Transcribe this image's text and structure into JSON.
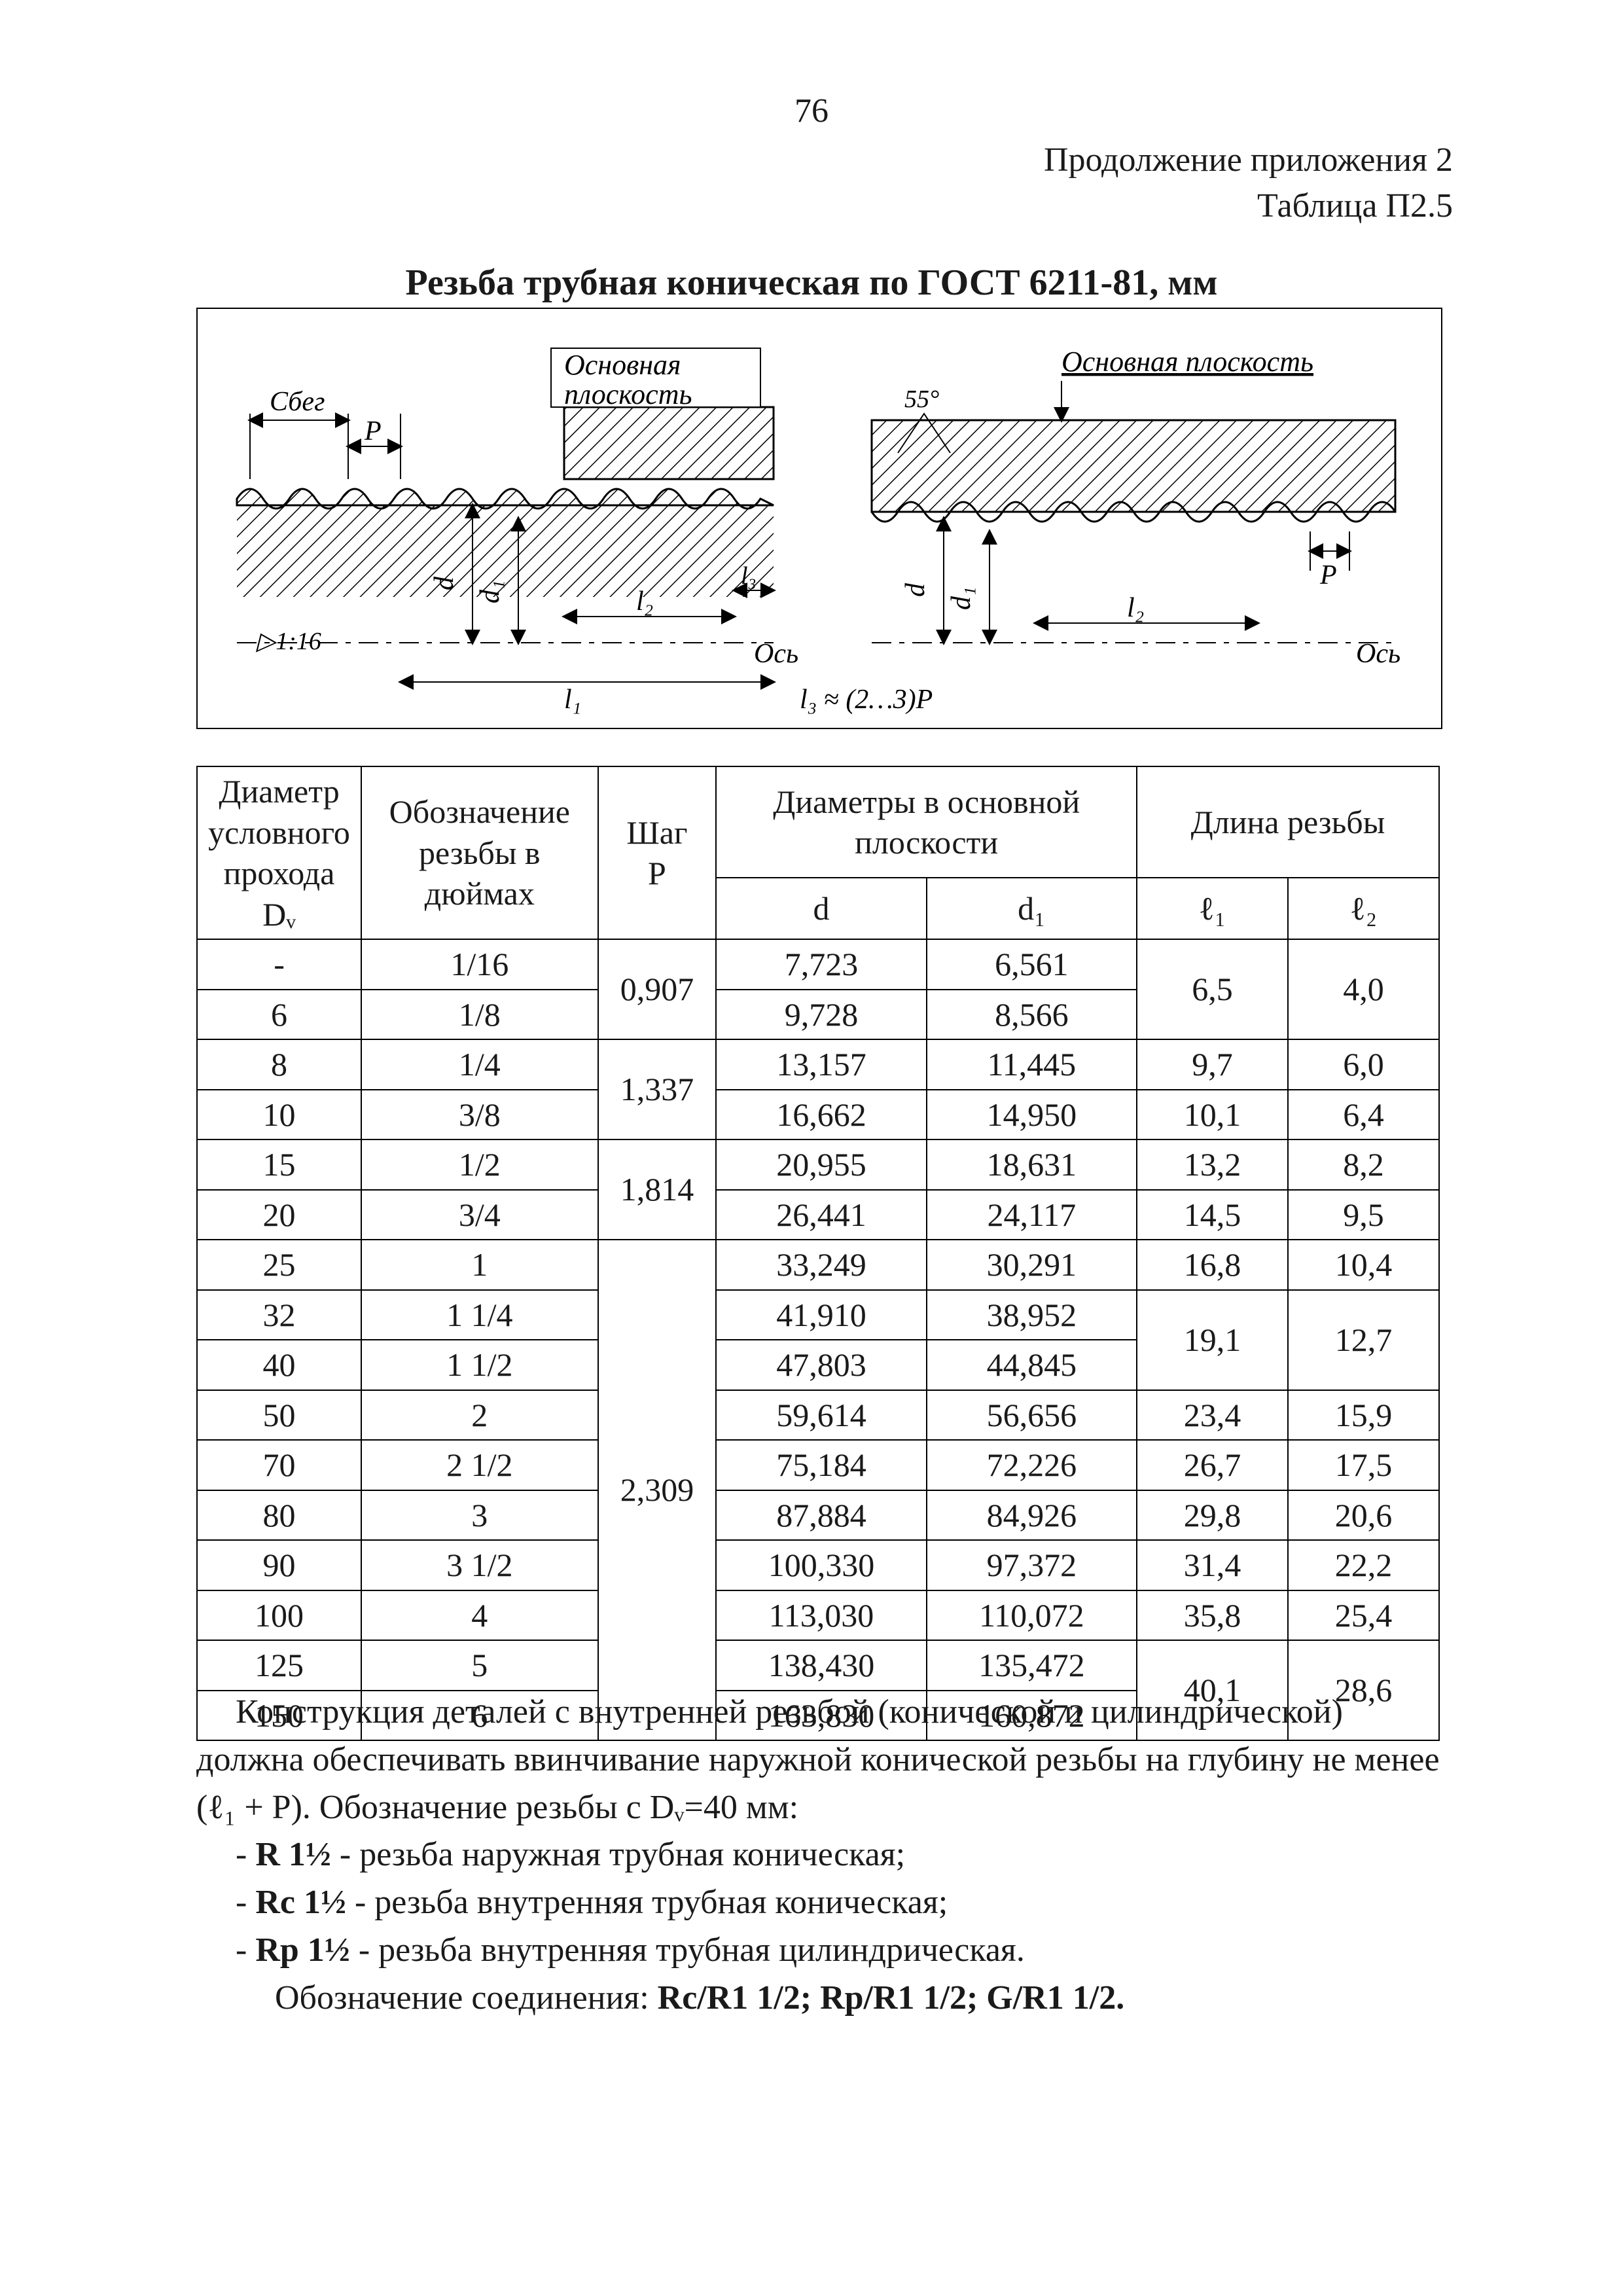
{
  "page_number": "76",
  "header": {
    "line1": "Продолжение приложения 2",
    "line2": "Таблица П2.5"
  },
  "title": "Резьба трубная коническая по ГОСТ 6211-81, мм",
  "figure": {
    "label_sbeg": "Сбег",
    "label_p_left": "P",
    "label_main_plane_left_1": "Основная",
    "label_main_plane_left_2": "плоскость",
    "label_main_plane_right": "Основная плоскость",
    "label_angle": "55°",
    "label_taper": "▷1:16",
    "label_d": "d",
    "label_d1": "d₁",
    "label_l1": "l₁",
    "label_l2": "l₂",
    "label_l3": "l₃",
    "label_p_right": "P",
    "label_axis": "Ось",
    "label_formula": "l₃ ≈ (2…3)P"
  },
  "table": {
    "headers": {
      "dy_top": "Диаметр условного прохода",
      "dy_bot": "Dᵥ",
      "name_top": "Обозначение резьбы в дюймах",
      "p_top": "Шаг",
      "p_bot": "P",
      "diam_group": "Диаметры в основной плоскости",
      "d": "d",
      "d1": "d₁",
      "len_group": "Длина резьбы",
      "l1": "ℓ₁",
      "l2": "ℓ₂"
    },
    "p_groups": [
      {
        "p": "0,907",
        "span": 2
      },
      {
        "p": "1,337",
        "span": 2
      },
      {
        "p": "1,814",
        "span": 2
      },
      {
        "p": "2,309",
        "span": 10
      }
    ],
    "rows": [
      {
        "dy": "-",
        "name": "1/16",
        "d": "7,723",
        "d1": "6,561",
        "l1": "6,5",
        "l2": "4,0",
        "l1_span": 2,
        "l2_span": 2
      },
      {
        "dy": "6",
        "name": "1/8",
        "d": "9,728",
        "d1": "8,566"
      },
      {
        "dy": "8",
        "name": "1/4",
        "d": "13,157",
        "d1": "11,445",
        "l1": "9,7",
        "l2": "6,0"
      },
      {
        "dy": "10",
        "name": "3/8",
        "d": "16,662",
        "d1": "14,950",
        "l1": "10,1",
        "l2": "6,4"
      },
      {
        "dy": "15",
        "name": "1/2",
        "d": "20,955",
        "d1": "18,631",
        "l1": "13,2",
        "l2": "8,2"
      },
      {
        "dy": "20",
        "name": "3/4",
        "d": "26,441",
        "d1": "24,117",
        "l1": "14,5",
        "l2": "9,5"
      },
      {
        "dy": "25",
        "name": "1",
        "d": "33,249",
        "d1": "30,291",
        "l1": "16,8",
        "l2": "10,4"
      },
      {
        "dy": "32",
        "name": "1 1/4",
        "d": "41,910",
        "d1": "38,952",
        "l1": "19,1",
        "l2": "12,7",
        "l1_span": 2,
        "l2_span": 2
      },
      {
        "dy": "40",
        "name": "1 1/2",
        "d": "47,803",
        "d1": "44,845"
      },
      {
        "dy": "50",
        "name": "2",
        "d": "59,614",
        "d1": "56,656",
        "l1": "23,4",
        "l2": "15,9"
      },
      {
        "dy": "70",
        "name": "2 1/2",
        "d": "75,184",
        "d1": "72,226",
        "l1": "26,7",
        "l2": "17,5"
      },
      {
        "dy": "80",
        "name": "3",
        "d": "87,884",
        "d1": "84,926",
        "l1": "29,8",
        "l2": "20,6"
      },
      {
        "dy": "90",
        "name": "3 1/2",
        "d": "100,330",
        "d1": "97,372",
        "l1": "31,4",
        "l2": "22,2"
      },
      {
        "dy": "100",
        "name": "4",
        "d": "113,030",
        "d1": "110,072",
        "l1": "35,8",
        "l2": "25,4"
      },
      {
        "dy": "125",
        "name": "5",
        "d": "138,430",
        "d1": "135,472",
        "l1": "40,1",
        "l2": "28,6",
        "l1_span": 2,
        "l2_span": 2
      },
      {
        "dy": "150",
        "name": "6",
        "d": "163,830",
        "d1": "160,872"
      }
    ]
  },
  "notes": {
    "para1": "Конструкция деталей с внутренней резьбой (конической и цилиндрической) должна обеспечивать ввинчивание наружной конической резьбы на глубину не менее (ℓ₁ + P). Обозначение резьбы с Dᵥ=40 мм:",
    "item1_b": "R 1½",
    "item1_t": " - резьба наружная трубная коническая;",
    "item2_b": "Rс 1½",
    "item2_t": " - резьба внутренняя трубная коническая;",
    "item3_b": "Rр 1½",
    "item3_t": " - резьба внутренняя трубная цилиндрическая.",
    "last_pre": "Обозначение соединения: ",
    "last_b": "Rс/R1 1/2;   Rр/R1 1/2;   G/R1 1/2."
  },
  "colors": {
    "text": "#1a1a1a",
    "border": "#000000",
    "background": "#ffffff"
  }
}
